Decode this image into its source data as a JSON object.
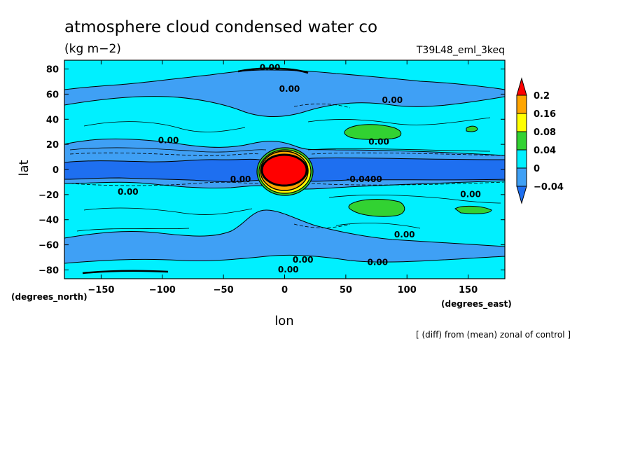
{
  "chart_data": {
    "type": "heatmap",
    "title": "atmosphere cloud condensed water co",
    "units": "(kg m−2)",
    "run_label": "T39L48_eml_3keq",
    "xlabel": "lon",
    "ylabel": "lat",
    "x_unit_label": "(degrees_east)",
    "y_unit_label": "(degrees_north)",
    "footnote": "[ (diff) from (mean) zonal of control ]",
    "xlim": [
      -180,
      180
    ],
    "ylim": [
      -87,
      87
    ],
    "x_ticks": [
      -150,
      -100,
      -50,
      0,
      50,
      100,
      150
    ],
    "y_ticks": [
      -80,
      -60,
      -40,
      -20,
      0,
      20,
      40,
      60,
      80
    ],
    "x_tick_labels": [
      "−150",
      "−100",
      "−50",
      "0",
      "50",
      "100",
      "150"
    ],
    "y_tick_labels": [
      "−80",
      "−60",
      "−40",
      "−20",
      "0",
      "20",
      "40",
      "60",
      "80"
    ],
    "colorbar": {
      "levels": [
        -0.04,
        0,
        0.04,
        0.08,
        0.16,
        0.2
      ],
      "labels": [
        "−0.04",
        "0",
        "0.04",
        "0.08",
        "0.16",
        "0.2"
      ],
      "colors": [
        "#1e6ff0",
        "#3fa0f5",
        "#00f0ff",
        "#32d232",
        "#ffff00",
        "#ffa500",
        "#ff0000"
      ]
    },
    "contour_labels": [
      {
        "lon": -12,
        "lat": 80,
        "text": "0.00"
      },
      {
        "lon": 4,
        "lat": 63,
        "text": "0.00"
      },
      {
        "lon": 88,
        "lat": 54,
        "text": "0.00"
      },
      {
        "lon": -95,
        "lat": 22,
        "text": "0.00"
      },
      {
        "lon": 77,
        "lat": 21,
        "text": "0.00"
      },
      {
        "lon": -36,
        "lat": -9,
        "text": "0.00"
      },
      {
        "lon": 65,
        "lat": -9,
        "text": "-0.0400"
      },
      {
        "lon": -128,
        "lat": -19,
        "text": "0.00"
      },
      {
        "lon": 152,
        "lat": -21,
        "text": "0.00"
      },
      {
        "lon": 98,
        "lat": -53,
        "text": "0.00"
      },
      {
        "lon": 15,
        "lat": -73,
        "text": "0.00"
      },
      {
        "lon": 76,
        "lat": -75,
        "text": "0.00"
      },
      {
        "lon": 3,
        "lat": -81,
        "text": "0.00"
      }
    ]
  }
}
